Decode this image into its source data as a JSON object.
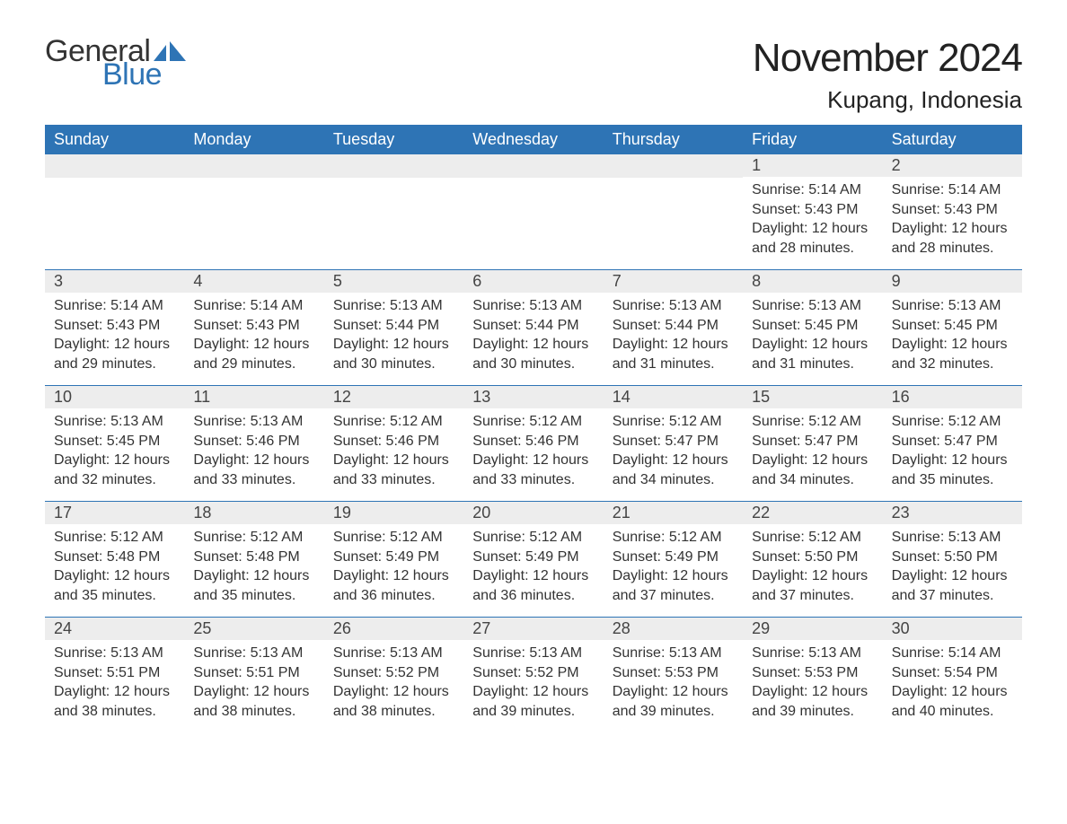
{
  "logo": {
    "general": "General",
    "blue": "Blue",
    "sail_color": "#2e74b5"
  },
  "title": "November 2024",
  "location": "Kupang, Indonesia",
  "colors": {
    "header_bg": "#2e74b5",
    "header_text": "#ffffff",
    "daynum_bg": "#ededed",
    "row_divider": "#2e74b5",
    "body_text": "#333333"
  },
  "day_headers": [
    "Sunday",
    "Monday",
    "Tuesday",
    "Wednesday",
    "Thursday",
    "Friday",
    "Saturday"
  ],
  "labels": {
    "sunrise": "Sunrise: ",
    "sunset": "Sunset: ",
    "daylight": "Daylight: "
  },
  "weeks": [
    [
      {
        "empty": true
      },
      {
        "empty": true
      },
      {
        "empty": true
      },
      {
        "empty": true
      },
      {
        "empty": true
      },
      {
        "day": "1",
        "sunrise": "5:14 AM",
        "sunset": "5:43 PM",
        "daylight": "12 hours and 28 minutes."
      },
      {
        "day": "2",
        "sunrise": "5:14 AM",
        "sunset": "5:43 PM",
        "daylight": "12 hours and 28 minutes."
      }
    ],
    [
      {
        "day": "3",
        "sunrise": "5:14 AM",
        "sunset": "5:43 PM",
        "daylight": "12 hours and 29 minutes."
      },
      {
        "day": "4",
        "sunrise": "5:14 AM",
        "sunset": "5:43 PM",
        "daylight": "12 hours and 29 minutes."
      },
      {
        "day": "5",
        "sunrise": "5:13 AM",
        "sunset": "5:44 PM",
        "daylight": "12 hours and 30 minutes."
      },
      {
        "day": "6",
        "sunrise": "5:13 AM",
        "sunset": "5:44 PM",
        "daylight": "12 hours and 30 minutes."
      },
      {
        "day": "7",
        "sunrise": "5:13 AM",
        "sunset": "5:44 PM",
        "daylight": "12 hours and 31 minutes."
      },
      {
        "day": "8",
        "sunrise": "5:13 AM",
        "sunset": "5:45 PM",
        "daylight": "12 hours and 31 minutes."
      },
      {
        "day": "9",
        "sunrise": "5:13 AM",
        "sunset": "5:45 PM",
        "daylight": "12 hours and 32 minutes."
      }
    ],
    [
      {
        "day": "10",
        "sunrise": "5:13 AM",
        "sunset": "5:45 PM",
        "daylight": "12 hours and 32 minutes."
      },
      {
        "day": "11",
        "sunrise": "5:13 AM",
        "sunset": "5:46 PM",
        "daylight": "12 hours and 33 minutes."
      },
      {
        "day": "12",
        "sunrise": "5:12 AM",
        "sunset": "5:46 PM",
        "daylight": "12 hours and 33 minutes."
      },
      {
        "day": "13",
        "sunrise": "5:12 AM",
        "sunset": "5:46 PM",
        "daylight": "12 hours and 33 minutes."
      },
      {
        "day": "14",
        "sunrise": "5:12 AM",
        "sunset": "5:47 PM",
        "daylight": "12 hours and 34 minutes."
      },
      {
        "day": "15",
        "sunrise": "5:12 AM",
        "sunset": "5:47 PM",
        "daylight": "12 hours and 34 minutes."
      },
      {
        "day": "16",
        "sunrise": "5:12 AM",
        "sunset": "5:47 PM",
        "daylight": "12 hours and 35 minutes."
      }
    ],
    [
      {
        "day": "17",
        "sunrise": "5:12 AM",
        "sunset": "5:48 PM",
        "daylight": "12 hours and 35 minutes."
      },
      {
        "day": "18",
        "sunrise": "5:12 AM",
        "sunset": "5:48 PM",
        "daylight": "12 hours and 35 minutes."
      },
      {
        "day": "19",
        "sunrise": "5:12 AM",
        "sunset": "5:49 PM",
        "daylight": "12 hours and 36 minutes."
      },
      {
        "day": "20",
        "sunrise": "5:12 AM",
        "sunset": "5:49 PM",
        "daylight": "12 hours and 36 minutes."
      },
      {
        "day": "21",
        "sunrise": "5:12 AM",
        "sunset": "5:49 PM",
        "daylight": "12 hours and 37 minutes."
      },
      {
        "day": "22",
        "sunrise": "5:12 AM",
        "sunset": "5:50 PM",
        "daylight": "12 hours and 37 minutes."
      },
      {
        "day": "23",
        "sunrise": "5:13 AM",
        "sunset": "5:50 PM",
        "daylight": "12 hours and 37 minutes."
      }
    ],
    [
      {
        "day": "24",
        "sunrise": "5:13 AM",
        "sunset": "5:51 PM",
        "daylight": "12 hours and 38 minutes."
      },
      {
        "day": "25",
        "sunrise": "5:13 AM",
        "sunset": "5:51 PM",
        "daylight": "12 hours and 38 minutes."
      },
      {
        "day": "26",
        "sunrise": "5:13 AM",
        "sunset": "5:52 PM",
        "daylight": "12 hours and 38 minutes."
      },
      {
        "day": "27",
        "sunrise": "5:13 AM",
        "sunset": "5:52 PM",
        "daylight": "12 hours and 39 minutes."
      },
      {
        "day": "28",
        "sunrise": "5:13 AM",
        "sunset": "5:53 PM",
        "daylight": "12 hours and 39 minutes."
      },
      {
        "day": "29",
        "sunrise": "5:13 AM",
        "sunset": "5:53 PM",
        "daylight": "12 hours and 39 minutes."
      },
      {
        "day": "30",
        "sunrise": "5:14 AM",
        "sunset": "5:54 PM",
        "daylight": "12 hours and 40 minutes."
      }
    ]
  ]
}
